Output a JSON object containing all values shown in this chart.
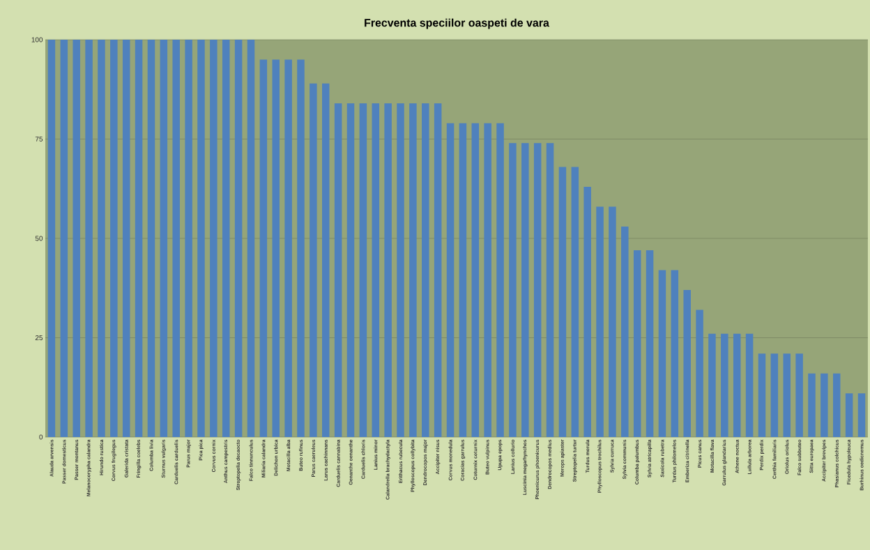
{
  "chart_data": {
    "type": "bar",
    "title": "Frecventa speciilor  oaspeti de vara",
    "categories": [
      "Alauda arvensis",
      "Passer domesticus",
      "Passer montanus",
      "Melanocorypha calandra",
      "Hirundo rustica",
      "Corvus frugilegus",
      "Galerida cristata",
      "Fringilla coelebs",
      "Columba livia",
      "Sturnus vulgaris",
      "Carduelis carduelis",
      "Parus major",
      "Pica pica",
      "Corvus cornix",
      "Anthus campestris",
      "Streptopelia decaocto",
      "Falco tinnunculus",
      "Miliaria calandra",
      "Delichon urbica",
      "Motacilla alba",
      "Buteo rufinus",
      "Parus caeruleus",
      "Larus cachinnans",
      "Carduelis cannabina",
      "Oenanthe oenanthe",
      "Carduelis chloris",
      "Lanius minor",
      "Calandrella brachydactyla",
      "Erithacus rubecula",
      "Phylloscopus collybita",
      "Dendrocopos major",
      "Accipiter nisus",
      "Corvus monedula",
      "Coracias garrulus",
      "Coturnix coturnix",
      "Buteo vulpinus",
      "Upupa epops",
      "Lanius collurio",
      "Luscinia megarhynchos",
      "Phoenicurus phoenicurus",
      "Dendrocopos medius",
      "Merops apiaster",
      "Streptopelia turtur",
      "Turdus merula",
      "Phylloscopus trochilus",
      "Sylvia curruca",
      "Sylvia communis",
      "Columba palumbus",
      "Sylvia atricapilla",
      "Saxicola rubetra",
      "Turdus philomelos",
      "Emberiza citrinella",
      "Picus canus",
      "Motacilla flava",
      "Garrulus glandarius",
      "Athene noctua",
      "Lullula arborea",
      "Perdix perdix",
      "Certhia familiaris",
      "Oriolus oriolus",
      "Falco subbuteo",
      "Sitta europaea",
      "Accipiter brevipes",
      "Phasianus colchicus",
      "Ficedula hypoleuca",
      "Burhinus oedicnemus"
    ],
    "values": [
      100,
      100,
      100,
      100,
      100,
      100,
      100,
      100,
      100,
      100,
      100,
      100,
      100,
      100,
      100,
      100,
      100,
      95,
      95,
      95,
      95,
      89,
      89,
      84,
      84,
      84,
      84,
      84,
      84,
      84,
      84,
      84,
      79,
      79,
      79,
      79,
      79,
      74,
      74,
      74,
      74,
      68,
      68,
      63,
      58,
      58,
      53,
      47,
      47,
      42,
      42,
      37,
      32,
      26,
      26,
      26,
      26,
      21,
      21,
      21,
      21,
      16,
      16,
      16,
      11,
      11
    ],
    "color": "#4f81bd",
    "ylim": [
      0,
      100
    ],
    "yticks": [
      0,
      25,
      50,
      75,
      100
    ],
    "grid": "y"
  }
}
